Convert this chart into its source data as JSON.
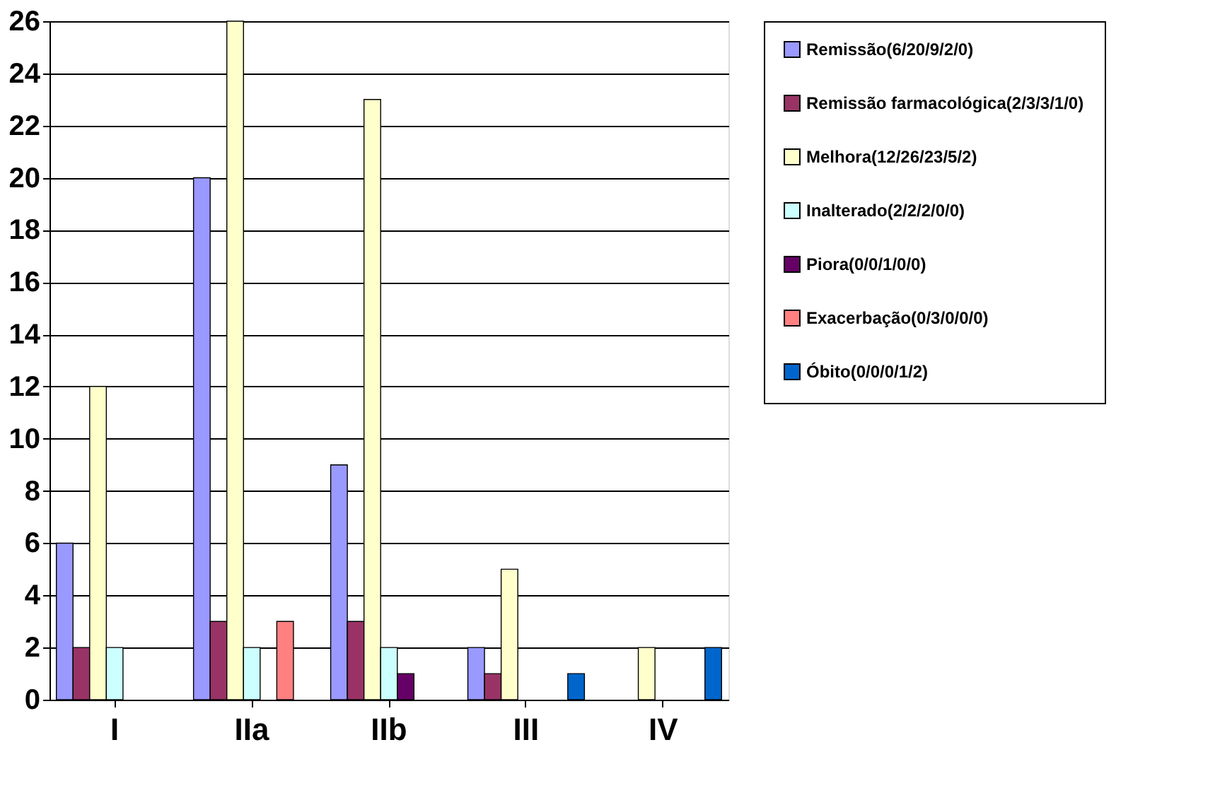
{
  "chart_data": {
    "type": "bar",
    "categories": [
      "I",
      "IIa",
      "IIb",
      "III",
      "IV"
    ],
    "series": [
      {
        "name": "Remissão(6/20/9/2/0)",
        "color": "#9999ff",
        "values": [
          6,
          20,
          9,
          2,
          0
        ]
      },
      {
        "name": "Remissão farmacológica(2/3/3/1/0)",
        "color": "#993366",
        "values": [
          2,
          3,
          3,
          1,
          0
        ]
      },
      {
        "name": "Melhora(12/26/23/5/2)",
        "color": "#ffffcc",
        "values": [
          12,
          26,
          23,
          5,
          2
        ]
      },
      {
        "name": "Inalterado(2/2/2/0/0)",
        "color": "#ccffff",
        "values": [
          2,
          2,
          2,
          0,
          0
        ]
      },
      {
        "name": "Piora(0/0/1/0/0)",
        "color": "#660066",
        "values": [
          0,
          0,
          1,
          0,
          0
        ]
      },
      {
        "name": "Exacerbação(0/3/0/0/0)",
        "color": "#ff8080",
        "values": [
          0,
          3,
          0,
          0,
          0
        ]
      },
      {
        "name": "Óbito(0/0/0/1/2)",
        "color": "#0066cc",
        "values": [
          0,
          0,
          0,
          1,
          2
        ]
      }
    ],
    "ylim": [
      0,
      26
    ],
    "yticks": [
      0,
      2,
      4,
      6,
      8,
      10,
      12,
      14,
      16,
      18,
      20,
      22,
      24,
      26
    ],
    "grid": "y",
    "legend": "right"
  }
}
